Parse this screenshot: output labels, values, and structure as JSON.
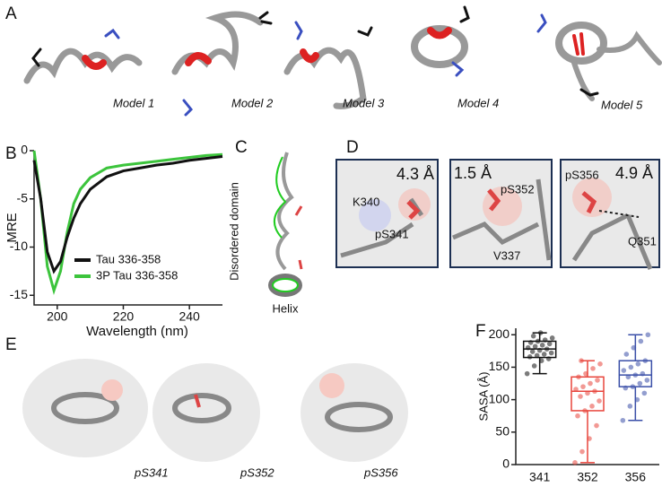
{
  "figure": {
    "panel_labels": [
      "A",
      "B",
      "C",
      "D",
      "E",
      "F"
    ],
    "a_models": [
      "Model 1",
      "Model 2",
      "Model 3",
      "Model 4",
      "Model 5"
    ],
    "c_labels": {
      "domain": "Disordered domain",
      "helix": "Helix"
    },
    "d_insets": [
      {
        "distance": "4.3 Å",
        "labels": [
          "K340",
          "pS341"
        ]
      },
      {
        "distance": "1.5 Å",
        "labels": [
          "pS352",
          "V337"
        ]
      },
      {
        "distance": "4.9 Å",
        "labels": [
          "pS356",
          "Q351"
        ]
      }
    ],
    "e_labels": [
      "pS341",
      "pS352",
      "pS356"
    ]
  },
  "chart_data": [
    {
      "type": "line",
      "xlabel": "Wavelength (nm)",
      "ylabel": "MRE",
      "x": [
        193,
        195,
        197,
        199,
        201,
        203,
        205,
        207,
        210,
        215,
        220,
        225,
        230,
        235,
        240,
        245,
        250
      ],
      "xlim": [
        193,
        250
      ],
      "xticks": [
        200,
        220,
        240
      ],
      "ylim": [
        -16,
        0
      ],
      "yticks": [
        0,
        -5,
        -10,
        -15
      ],
      "legend": "lower right",
      "series": [
        {
          "name": "Tau 336-358",
          "color": "#111111",
          "values": [
            -1,
            -5,
            -10.5,
            -12.5,
            -11.5,
            -9,
            -7,
            -5.5,
            -4,
            -2.7,
            -2.1,
            -1.8,
            -1.5,
            -1.3,
            -1,
            -0.8,
            -0.6
          ]
        },
        {
          "name": "3P Tau 336-358",
          "color": "#3cc43c",
          "values": [
            0,
            -5,
            -12,
            -14.5,
            -12.5,
            -8.5,
            -5.5,
            -4,
            -2.8,
            -1.8,
            -1.5,
            -1.3,
            -1.1,
            -0.9,
            -0.7,
            -0.5,
            -0.4
          ]
        }
      ]
    },
    {
      "type": "box",
      "ylabel": "SASA (Å)",
      "categories": [
        "341",
        "352",
        "356"
      ],
      "ylim": [
        0,
        210
      ],
      "yticks": [
        0,
        50,
        100,
        150,
        200
      ],
      "boxes": [
        {
          "color": "#111111",
          "min": 140,
          "q1": 165,
          "median": 178,
          "q3": 190,
          "max": 203,
          "points": [
            140,
            152,
            160,
            163,
            166,
            168,
            170,
            172,
            174,
            176,
            178,
            180,
            182,
            184,
            186,
            188,
            190,
            192,
            195,
            198,
            203
          ]
        },
        {
          "color": "#e8453c",
          "min": 3,
          "q1": 83,
          "median": 113,
          "q3": 135,
          "max": 160,
          "points": [
            3,
            20,
            40,
            60,
            75,
            83,
            90,
            98,
            105,
            110,
            113,
            116,
            120,
            125,
            130,
            135,
            140,
            148,
            155,
            160
          ]
        },
        {
          "color": "#3a4fa8",
          "min": 68,
          "q1": 120,
          "median": 138,
          "q3": 160,
          "max": 200,
          "points": [
            68,
            90,
            100,
            110,
            118,
            120,
            125,
            130,
            135,
            138,
            140,
            145,
            150,
            155,
            160,
            170,
            180,
            190,
            200
          ]
        }
      ]
    }
  ]
}
